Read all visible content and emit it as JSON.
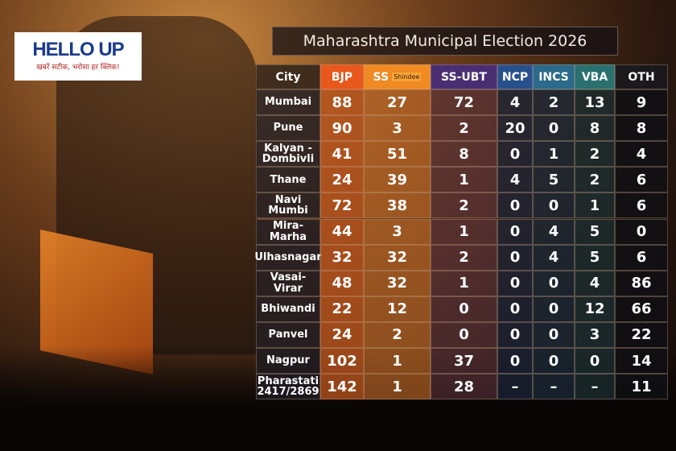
{
  "logo": {
    "name": "HELLO UP",
    "tagline": "खबरें सटीक, भरोसा हर क्लिक!"
  },
  "title": "Maharashtra Municipal Election 2026",
  "table": {
    "header": [
      "City",
      "BJP",
      "SS",
      "SS-UBT",
      "NCP",
      "INCS",
      "VBA",
      "OTH"
    ],
    "header_note": "Shindee",
    "rows": [
      [
        "Mumbai",
        88,
        27,
        72,
        4,
        2,
        13,
        9
      ],
      [
        "Pune",
        90,
        3,
        2,
        20,
        0,
        8,
        8
      ],
      [
        "Kalyan - Dombivli",
        41,
        51,
        8,
        0,
        1,
        2,
        4
      ],
      [
        "Thane",
        24,
        39,
        1,
        4,
        5,
        2,
        6
      ],
      [
        "Navi Mumbi",
        72,
        38,
        2,
        0,
        0,
        1,
        6
      ],
      [
        "Mira-Marha",
        44,
        3,
        1,
        0,
        4,
        5,
        0
      ],
      [
        "Ulhasnagar",
        32,
        32,
        2,
        0,
        4,
        5,
        6
      ],
      [
        "Vasai-Virar",
        48,
        32,
        1,
        0,
        0,
        4,
        86
      ],
      [
        "Bhiwandi",
        22,
        12,
        0,
        0,
        0,
        12,
        66
      ],
      [
        "Panvel",
        24,
        2,
        0,
        0,
        0,
        3,
        22
      ],
      [
        "Nagpur",
        102,
        1,
        37,
        0,
        0,
        0,
        14
      ],
      [
        "Pharastati 2417/2869",
        142,
        1,
        28,
        "–",
        "–",
        "–",
        11
      ]
    ]
  }
}
